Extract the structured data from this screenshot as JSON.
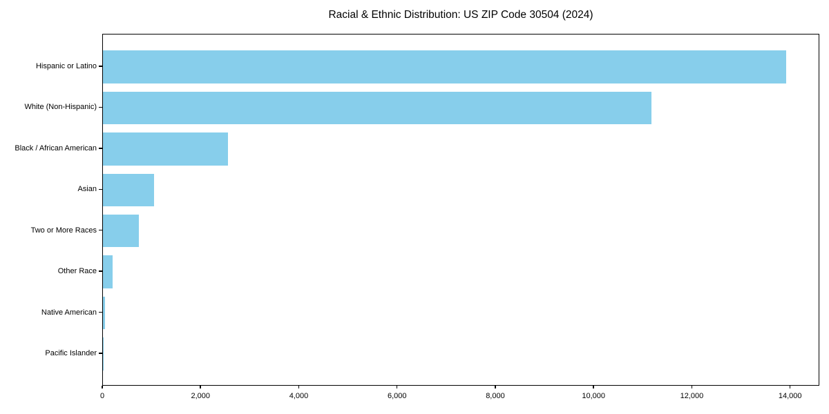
{
  "chart_data": {
    "type": "bar",
    "orientation": "horizontal",
    "title": "Racial & Ethnic Distribution: US ZIP Code 30504 (2024)",
    "categories": [
      "Hispanic or Latino",
      "White (Non-Hispanic)",
      "Black / African American",
      "Asian",
      "Two or More Races",
      "Other Race",
      "Native American",
      "Pacific Islander"
    ],
    "values": [
      13900,
      11160,
      2540,
      1040,
      725,
      190,
      40,
      10
    ],
    "x_ticks": [
      0,
      2000,
      4000,
      6000,
      8000,
      10000,
      12000,
      14000
    ],
    "x_tick_labels": [
      "0",
      "2,000",
      "4,000",
      "6,000",
      "8,000",
      "10,000",
      "12,000",
      "14,000"
    ],
    "xlabel": "",
    "ylabel": "",
    "xlim": [
      0,
      14595
    ],
    "bar_color": "#87CEEB",
    "axis_color": "#000000",
    "text_color": "#000000",
    "grid": false,
    "legend": "none"
  }
}
